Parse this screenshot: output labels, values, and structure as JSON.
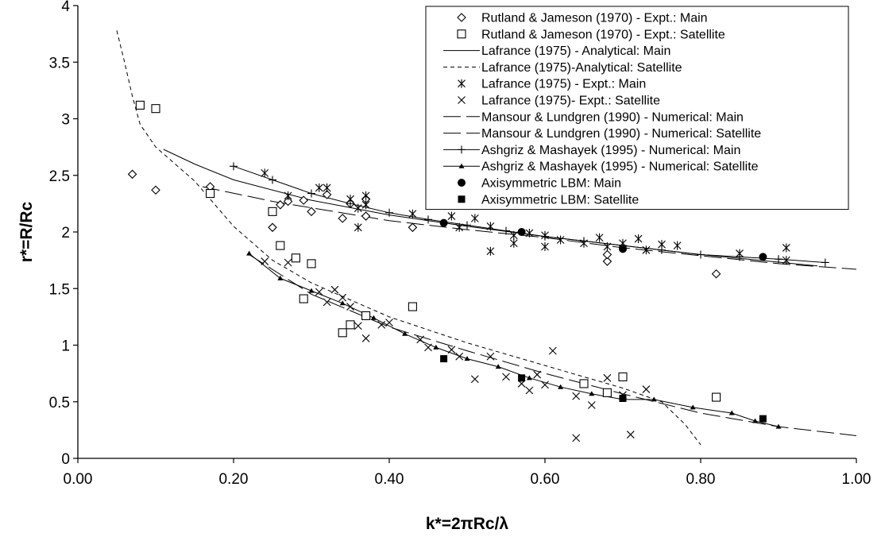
{
  "chart_data": {
    "type": "scatter",
    "xlabel": "k*=2πRc/λ",
    "ylabel": "r*=R/Rc",
    "xlim": [
      0,
      1
    ],
    "ylim": [
      0,
      4
    ],
    "x_ticks": [
      "0.00",
      "0.20",
      "0.40",
      "0.60",
      "0.80",
      "1.00"
    ],
    "y_ticks": [
      "0",
      "0.5",
      "1",
      "1.5",
      "2",
      "2.5",
      "3",
      "3.5",
      "4"
    ],
    "grid": false,
    "legend_position": "top-right",
    "series": [
      {
        "name": "Rutland & Jameson (1970) - Expt.: Main",
        "marker": "diamond-open",
        "line": "none",
        "points": [
          [
            0.07,
            2.51
          ],
          [
            0.1,
            2.37
          ],
          [
            0.17,
            2.4
          ],
          [
            0.25,
            2.04
          ],
          [
            0.26,
            2.24
          ],
          [
            0.27,
            2.27
          ],
          [
            0.29,
            2.28
          ],
          [
            0.3,
            2.18
          ],
          [
            0.32,
            2.33
          ],
          [
            0.34,
            2.12
          ],
          [
            0.35,
            2.25
          ],
          [
            0.37,
            2.14
          ],
          [
            0.37,
            2.29
          ],
          [
            0.43,
            2.04
          ],
          [
            0.68,
            1.74
          ],
          [
            0.68,
            1.8
          ],
          [
            0.82,
            1.63
          ]
        ]
      },
      {
        "name": "Rutland & Jameson (1970) - Expt.: Satellite",
        "marker": "square-open",
        "line": "none",
        "points": [
          [
            0.08,
            3.12
          ],
          [
            0.1,
            3.09
          ],
          [
            0.17,
            2.34
          ],
          [
            0.25,
            2.18
          ],
          [
            0.26,
            1.88
          ],
          [
            0.28,
            1.77
          ],
          [
            0.29,
            1.41
          ],
          [
            0.3,
            1.72
          ],
          [
            0.34,
            1.11
          ],
          [
            0.35,
            1.18
          ],
          [
            0.37,
            1.26
          ],
          [
            0.43,
            1.34
          ],
          [
            0.65,
            0.66
          ],
          [
            0.68,
            0.58
          ],
          [
            0.7,
            0.72
          ],
          [
            0.82,
            0.54
          ]
        ]
      },
      {
        "name": "Lafrance (1975) - Analytical: Main",
        "marker": "none",
        "line": "solid",
        "points": [
          [
            0.11,
            2.73
          ],
          [
            0.15,
            2.6
          ],
          [
            0.2,
            2.46
          ],
          [
            0.3,
            2.28
          ],
          [
            0.4,
            2.15
          ],
          [
            0.5,
            2.05
          ],
          [
            0.6,
            1.96
          ],
          [
            0.7,
            1.88
          ],
          [
            0.8,
            1.8
          ],
          [
            0.95,
            1.7
          ]
        ]
      },
      {
        "name": "Lafrance (1975)-Analytical: Satellite",
        "marker": "none",
        "line": "dashed-short",
        "points": [
          [
            0.05,
            3.78
          ],
          [
            0.06,
            3.5
          ],
          [
            0.07,
            3.2
          ],
          [
            0.08,
            2.95
          ],
          [
            0.1,
            2.75
          ],
          [
            0.15,
            2.45
          ],
          [
            0.2,
            2.05
          ],
          [
            0.25,
            1.75
          ],
          [
            0.3,
            1.55
          ],
          [
            0.4,
            1.25
          ],
          [
            0.5,
            1.02
          ],
          [
            0.6,
            0.82
          ],
          [
            0.7,
            0.62
          ],
          [
            0.75,
            0.5
          ],
          [
            0.78,
            0.3
          ],
          [
            0.8,
            0.12
          ]
        ]
      },
      {
        "name": "Lafrance (1975) - Expt.: Main",
        "marker": "asterisk",
        "line": "none",
        "points": [
          [
            0.24,
            2.52
          ],
          [
            0.27,
            2.32
          ],
          [
            0.31,
            2.39
          ],
          [
            0.32,
            2.39
          ],
          [
            0.35,
            2.29
          ],
          [
            0.36,
            2.21
          ],
          [
            0.36,
            2.04
          ],
          [
            0.37,
            2.32
          ],
          [
            0.37,
            2.24
          ],
          [
            0.43,
            2.16
          ],
          [
            0.48,
            2.14
          ],
          [
            0.49,
            2.04
          ],
          [
            0.51,
            2.12
          ],
          [
            0.53,
            2.05
          ],
          [
            0.53,
            1.83
          ],
          [
            0.56,
            1.9
          ],
          [
            0.56,
            1.97
          ],
          [
            0.58,
            1.99
          ],
          [
            0.6,
            1.97
          ],
          [
            0.6,
            1.87
          ],
          [
            0.62,
            1.93
          ],
          [
            0.65,
            1.9
          ],
          [
            0.67,
            1.95
          ],
          [
            0.68,
            1.87
          ],
          [
            0.7,
            1.9
          ],
          [
            0.72,
            1.94
          ],
          [
            0.73,
            1.84
          ],
          [
            0.75,
            1.89
          ],
          [
            0.77,
            1.88
          ],
          [
            0.85,
            1.81
          ],
          [
            0.91,
            1.75
          ],
          [
            0.91,
            1.86
          ]
        ]
      },
      {
        "name": "Lafrance (1975)- Expt.: Satellite",
        "marker": "x",
        "line": "none",
        "points": [
          [
            0.24,
            1.74
          ],
          [
            0.27,
            1.73
          ],
          [
            0.31,
            1.47
          ],
          [
            0.32,
            1.38
          ],
          [
            0.33,
            1.49
          ],
          [
            0.34,
            1.42
          ],
          [
            0.35,
            1.34
          ],
          [
            0.36,
            1.17
          ],
          [
            0.37,
            1.06
          ],
          [
            0.39,
            1.18
          ],
          [
            0.4,
            1.2
          ],
          [
            0.44,
            1.05
          ],
          [
            0.45,
            0.98
          ],
          [
            0.48,
            0.96
          ],
          [
            0.49,
            0.9
          ],
          [
            0.51,
            0.7
          ],
          [
            0.53,
            0.9
          ],
          [
            0.55,
            0.72
          ],
          [
            0.57,
            0.66
          ],
          [
            0.58,
            0.6
          ],
          [
            0.59,
            0.74
          ],
          [
            0.6,
            0.65
          ],
          [
            0.61,
            0.95
          ],
          [
            0.64,
            0.55
          ],
          [
            0.64,
            0.18
          ],
          [
            0.66,
            0.47
          ],
          [
            0.68,
            0.71
          ],
          [
            0.7,
            0.56
          ],
          [
            0.71,
            0.21
          ],
          [
            0.73,
            0.61
          ]
        ]
      },
      {
        "name": "Mansour & Lundgren (1990) - Numerical: Main",
        "marker": "none",
        "line": "dashed-long",
        "points": [
          [
            0.16,
            2.4
          ],
          [
            0.25,
            2.27
          ],
          [
            0.4,
            2.1
          ],
          [
            0.5,
            2.02
          ],
          [
            0.6,
            1.95
          ],
          [
            0.7,
            1.86
          ],
          [
            0.8,
            1.79
          ],
          [
            0.9,
            1.72
          ],
          [
            1.0,
            1.67
          ]
        ]
      },
      {
        "name": "Mansour & Lundgren (1990) - Numerical: Satellite",
        "marker": "none",
        "line": "dashed-long",
        "points": [
          [
            0.22,
            1.8
          ],
          [
            0.3,
            1.45
          ],
          [
            0.4,
            1.16
          ],
          [
            0.5,
            0.95
          ],
          [
            0.6,
            0.75
          ],
          [
            0.7,
            0.57
          ],
          [
            0.8,
            0.4
          ],
          [
            0.9,
            0.28
          ],
          [
            1.0,
            0.2
          ]
        ]
      },
      {
        "name": "Ashgriz & Mashayek (1995) - Numerical: Main",
        "marker": "plus",
        "line": "solid",
        "points": [
          [
            0.2,
            2.58
          ],
          [
            0.25,
            2.46
          ],
          [
            0.3,
            2.34
          ],
          [
            0.35,
            2.25
          ],
          [
            0.4,
            2.17
          ],
          [
            0.45,
            2.11
          ],
          [
            0.5,
            2.06
          ],
          [
            0.55,
            2.01
          ],
          [
            0.6,
            1.96
          ],
          [
            0.65,
            1.92
          ],
          [
            0.7,
            1.88
          ],
          [
            0.75,
            1.84
          ],
          [
            0.8,
            1.8
          ],
          [
            0.85,
            1.78
          ],
          [
            0.9,
            1.76
          ],
          [
            0.96,
            1.73
          ]
        ]
      },
      {
        "name": "Ashgriz & Mashayek (1995) - Numerical: Satellite",
        "marker": "triangle-filled",
        "line": "solid",
        "points": [
          [
            0.22,
            1.81
          ],
          [
            0.26,
            1.59
          ],
          [
            0.3,
            1.48
          ],
          [
            0.34,
            1.37
          ],
          [
            0.38,
            1.24
          ],
          [
            0.42,
            1.1
          ],
          [
            0.46,
            0.98
          ],
          [
            0.5,
            0.88
          ],
          [
            0.54,
            0.81
          ],
          [
            0.58,
            0.71
          ],
          [
            0.62,
            0.63
          ],
          [
            0.66,
            0.57
          ],
          [
            0.7,
            0.52
          ],
          [
            0.74,
            0.52
          ],
          [
            0.79,
            0.45
          ],
          [
            0.84,
            0.4
          ],
          [
            0.87,
            0.33
          ],
          [
            0.9,
            0.28
          ]
        ]
      },
      {
        "name": "Axisymmetric LBM: Main",
        "marker": "circle-filled",
        "line": "none",
        "points": [
          [
            0.47,
            2.08
          ],
          [
            0.57,
            2.0
          ],
          [
            0.7,
            1.85
          ],
          [
            0.88,
            1.78
          ]
        ]
      },
      {
        "name": "Axisymmetric LBM: Satellite",
        "marker": "square-filled",
        "line": "none",
        "points": [
          [
            0.47,
            0.88
          ],
          [
            0.57,
            0.71
          ],
          [
            0.7,
            0.53
          ],
          [
            0.88,
            0.35
          ]
        ]
      }
    ]
  }
}
